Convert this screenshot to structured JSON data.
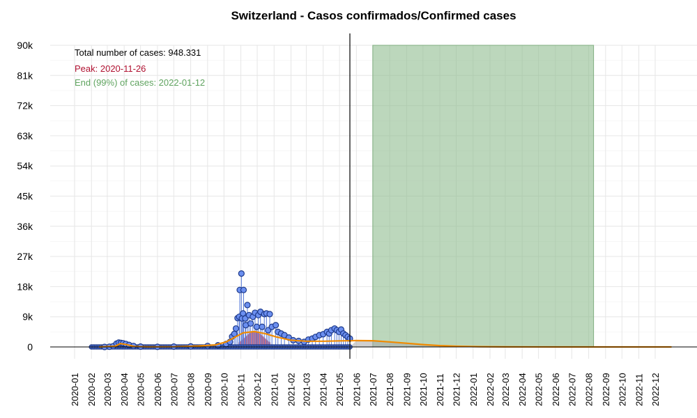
{
  "chart_data": {
    "type": "line",
    "title": "Switzerland - Casos confirmados/Confirmed cases",
    "xlabel": "",
    "ylabel": "",
    "ylim": [
      0,
      90000
    ],
    "xlim": [
      "2019-12-15",
      "2022-12-31"
    ],
    "grid": true,
    "y_ticks": [
      0,
      9000,
      18000,
      27000,
      36000,
      45000,
      54000,
      63000,
      72000,
      81000,
      90000
    ],
    "y_tick_labels": [
      "0",
      "9k",
      "18k",
      "27k",
      "36k",
      "45k",
      "54k",
      "63k",
      "72k",
      "81k",
      "90k"
    ],
    "x_tick_labels": [
      "2020-01",
      "2020-02",
      "2020-03",
      "2020-04",
      "2020-05",
      "2020-06",
      "2020-07",
      "2020-08",
      "2020-09",
      "2020-10",
      "2020-11",
      "2020-12",
      "2021-01",
      "2021-02",
      "2021-03",
      "2021-04",
      "2021-05",
      "2021-06",
      "2021-07",
      "2021-08",
      "2021-09",
      "2021-10",
      "2021-11",
      "2021-12",
      "2022-01",
      "2022-02",
      "2022-03",
      "2022-04",
      "2022-05",
      "2022-06",
      "2022-07",
      "2022-08",
      "2022-09",
      "2022-10",
      "2022-11",
      "2022-12"
    ],
    "annotations": {
      "total": "Total number of cases: 948.331",
      "peak": "Peak: 2020-11-26",
      "end": "End (99%) of cases: 2022-01-12"
    },
    "current_date_line": "2021-05-20",
    "shaded_region": {
      "from": "2021-07-01",
      "to": "2022-08-10",
      "color": "#8fbc8f"
    },
    "series": [
      {
        "kind": "daily_cases",
        "color": "#1e3a8a",
        "fill": "#6b8ff0",
        "points": [
          [
            "2020-02-25",
            0
          ],
          [
            "2020-03-05",
            60
          ],
          [
            "2020-03-12",
            250
          ],
          [
            "2020-03-18",
            1000
          ],
          [
            "2020-03-22",
            1300
          ],
          [
            "2020-03-26",
            1200
          ],
          [
            "2020-03-30",
            1100
          ],
          [
            "2020-04-04",
            900
          ],
          [
            "2020-04-10",
            600
          ],
          [
            "2020-04-18",
            300
          ],
          [
            "2020-05-01",
            100
          ],
          [
            "2020-06-01",
            30
          ],
          [
            "2020-07-01",
            100
          ],
          [
            "2020-08-01",
            150
          ],
          [
            "2020-09-01",
            300
          ],
          [
            "2020-09-20",
            500
          ],
          [
            "2020-10-05",
            900
          ],
          [
            "2020-10-12",
            1500
          ],
          [
            "2020-10-16",
            3100
          ],
          [
            "2020-10-20",
            3900
          ],
          [
            "2020-10-23",
            5500
          ],
          [
            "2020-10-26",
            8600
          ],
          [
            "2020-10-29",
            9000
          ],
          [
            "2020-10-30",
            17000
          ],
          [
            "2020-11-02",
            21900
          ],
          [
            "2020-11-03",
            8500
          ],
          [
            "2020-11-05",
            10000
          ],
          [
            "2020-11-06",
            17000
          ],
          [
            "2020-11-09",
            8500
          ],
          [
            "2020-11-10",
            6500
          ],
          [
            "2020-11-13",
            12500
          ],
          [
            "2020-11-16",
            9500
          ],
          [
            "2020-11-19",
            7000
          ],
          [
            "2020-11-23",
            9000
          ],
          [
            "2020-11-27",
            10200
          ],
          [
            "2020-11-30",
            6000
          ],
          [
            "2020-12-03",
            9500
          ],
          [
            "2020-12-07",
            10500
          ],
          [
            "2020-12-10",
            6000
          ],
          [
            "2020-12-14",
            9800
          ],
          [
            "2020-12-18",
            10000
          ],
          [
            "2020-12-21",
            5000
          ],
          [
            "2020-12-24",
            9800
          ],
          [
            "2020-12-28",
            6000
          ],
          [
            "2021-01-04",
            6500
          ],
          [
            "2021-01-08",
            4500
          ],
          [
            "2021-01-14",
            4000
          ],
          [
            "2021-01-20",
            3500
          ],
          [
            "2021-01-28",
            2800
          ],
          [
            "2021-02-05",
            2000
          ],
          [
            "2021-02-15",
            1800
          ],
          [
            "2021-02-25",
            1500
          ],
          [
            "2021-03-05",
            2200
          ],
          [
            "2021-03-12",
            2500
          ],
          [
            "2021-03-18",
            3000
          ],
          [
            "2021-03-25",
            3500
          ],
          [
            "2021-04-01",
            3800
          ],
          [
            "2021-04-08",
            4500
          ],
          [
            "2021-04-12",
            4000
          ],
          [
            "2021-04-16",
            5000
          ],
          [
            "2021-04-22",
            5500
          ],
          [
            "2021-04-26",
            5000
          ],
          [
            "2021-04-30",
            4500
          ],
          [
            "2021-05-04",
            5200
          ],
          [
            "2021-05-08",
            4000
          ],
          [
            "2021-05-12",
            3500
          ],
          [
            "2021-05-16",
            3000
          ],
          [
            "2021-05-20",
            2500
          ]
        ]
      },
      {
        "kind": "fitted_curve",
        "color": "#f08a00",
        "points": [
          [
            "2020-02-15",
            0
          ],
          [
            "2020-03-15",
            200
          ],
          [
            "2020-03-25",
            1000
          ],
          [
            "2020-04-05",
            700
          ],
          [
            "2020-04-20",
            150
          ],
          [
            "2020-05-15",
            20
          ],
          [
            "2020-07-01",
            60
          ],
          [
            "2020-08-15",
            300
          ],
          [
            "2020-09-15",
            600
          ],
          [
            "2020-10-05",
            1500
          ],
          [
            "2020-10-20",
            2800
          ],
          [
            "2020-11-05",
            4200
          ],
          [
            "2020-11-26",
            4600
          ],
          [
            "2020-12-15",
            4000
          ],
          [
            "2021-01-05",
            3000
          ],
          [
            "2021-02-01",
            2000
          ],
          [
            "2021-03-01",
            1700
          ],
          [
            "2021-04-01",
            1700
          ],
          [
            "2021-05-01",
            1800
          ],
          [
            "2021-06-01",
            1900
          ],
          [
            "2021-07-01",
            1850
          ],
          [
            "2021-08-01",
            1500
          ],
          [
            "2021-09-01",
            1100
          ],
          [
            "2021-10-01",
            700
          ],
          [
            "2021-11-01",
            400
          ],
          [
            "2021-12-01",
            200
          ],
          [
            "2022-01-12",
            80
          ],
          [
            "2022-03-01",
            20
          ],
          [
            "2022-06-01",
            0
          ],
          [
            "2022-12-31",
            0
          ]
        ]
      }
    ]
  }
}
